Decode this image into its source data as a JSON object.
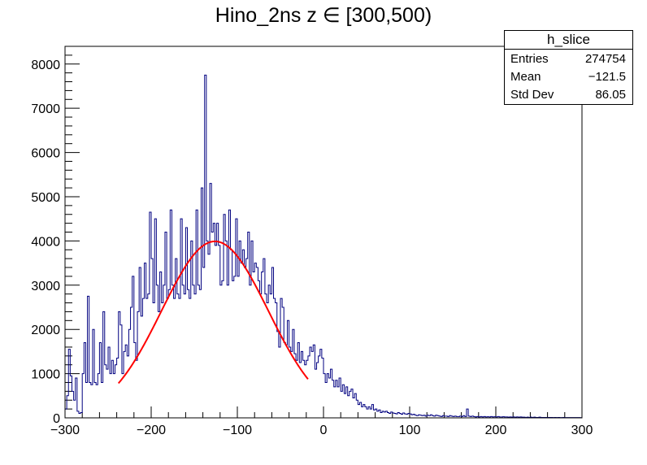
{
  "title": "Hino_2ns z  ∈ [300,500)",
  "stats": {
    "name": "h_slice",
    "entries_label": "Entries",
    "entries_value": "274754",
    "mean_label": "Mean",
    "mean_value": "−121.5",
    "std_label": "Std Dev",
    "std_value": "86.05"
  },
  "colors": {
    "histogram": "#000080",
    "fit": "#ff0000"
  },
  "chart_data": {
    "type": "line",
    "style": "step-histogram",
    "title": "Hino_2ns z  ∈ [300,500)",
    "xlabel": "",
    "ylabel": "",
    "xlim": [
      -300,
      300
    ],
    "ylim": [
      0,
      8400
    ],
    "grid": false,
    "x_ticks": [
      -300,
      -200,
      -100,
      0,
      100,
      200,
      300
    ],
    "x_tick_labels": [
      "−300",
      "−200",
      "−100",
      "0",
      "100",
      "200",
      "300"
    ],
    "y_ticks": [
      0,
      1000,
      2000,
      3000,
      4000,
      5000,
      6000,
      7000,
      8000
    ],
    "y_tick_labels": [
      "0",
      "1000",
      "2000",
      "3000",
      "4000",
      "5000",
      "6000",
      "7000",
      "8000"
    ],
    "series": [
      {
        "kind": "histogram",
        "bin_edges_from": -300,
        "bin_width": 2,
        "points": [
          [
            -300,
            200
          ],
          [
            -298,
            500
          ],
          [
            -296,
            1550
          ],
          [
            -294,
            950
          ],
          [
            -292,
            600
          ],
          [
            -290,
            400
          ],
          [
            -288,
            900
          ],
          [
            -286,
            150
          ],
          [
            -284,
            100
          ],
          [
            -282,
            120
          ],
          [
            -280,
            1000
          ],
          [
            -278,
            1700
          ],
          [
            -276,
            800
          ],
          [
            -274,
            2750
          ],
          [
            -272,
            800
          ],
          [
            -270,
            750
          ],
          [
            -268,
            2000
          ],
          [
            -266,
            800
          ],
          [
            -264,
            750
          ],
          [
            -262,
            1000
          ],
          [
            -260,
            1700
          ],
          [
            -258,
            800
          ],
          [
            -256,
            2400
          ],
          [
            -254,
            1200
          ],
          [
            -252,
            1100
          ],
          [
            -250,
            1600
          ],
          [
            -248,
            1000
          ],
          [
            -246,
            1300
          ],
          [
            -244,
            1000
          ],
          [
            -242,
            1200
          ],
          [
            -240,
            1350
          ],
          [
            -238,
            2400
          ],
          [
            -236,
            2100
          ],
          [
            -234,
            1000
          ],
          [
            -232,
            1500
          ],
          [
            -230,
            1650
          ],
          [
            -228,
            1400
          ],
          [
            -226,
            2000
          ],
          [
            -224,
            2500
          ],
          [
            -222,
            3200
          ],
          [
            -220,
            1700
          ],
          [
            -218,
            1300
          ],
          [
            -216,
            2400
          ],
          [
            -214,
            3400
          ],
          [
            -212,
            2300
          ],
          [
            -210,
            2700
          ],
          [
            -208,
            3500
          ],
          [
            -206,
            2700
          ],
          [
            -204,
            2800
          ],
          [
            -202,
            4650
          ],
          [
            -200,
            3600
          ],
          [
            -198,
            2600
          ],
          [
            -196,
            4500
          ],
          [
            -194,
            3000
          ],
          [
            -192,
            2400
          ],
          [
            -190,
            3300
          ],
          [
            -188,
            2600
          ],
          [
            -186,
            3000
          ],
          [
            -184,
            4200
          ],
          [
            -182,
            2700
          ],
          [
            -180,
            2900
          ],
          [
            -178,
            4700
          ],
          [
            -176,
            3000
          ],
          [
            -174,
            2700
          ],
          [
            -172,
            3600
          ],
          [
            -170,
            2800
          ],
          [
            -168,
            2700
          ],
          [
            -166,
            4500
          ],
          [
            -164,
            3000
          ],
          [
            -162,
            2800
          ],
          [
            -160,
            4300
          ],
          [
            -158,
            2900
          ],
          [
            -156,
            2700
          ],
          [
            -154,
            4000
          ],
          [
            -152,
            3000
          ],
          [
            -150,
            2800
          ],
          [
            -148,
            4700
          ],
          [
            -146,
            3000
          ],
          [
            -144,
            2900
          ],
          [
            -142,
            5200
          ],
          [
            -140,
            3400
          ],
          [
            -138,
            7750
          ],
          [
            -136,
            4000
          ],
          [
            -134,
            3700
          ],
          [
            -132,
            5300
          ],
          [
            -130,
            4200
          ],
          [
            -128,
            4400
          ],
          [
            -126,
            3900
          ],
          [
            -124,
            4400
          ],
          [
            -122,
            3900
          ],
          [
            -120,
            3000
          ],
          [
            -118,
            3100
          ],
          [
            -116,
            4600
          ],
          [
            -114,
            4000
          ],
          [
            -112,
            3000
          ],
          [
            -110,
            4700
          ],
          [
            -108,
            3800
          ],
          [
            -106,
            3100
          ],
          [
            -104,
            3200
          ],
          [
            -102,
            4500
          ],
          [
            -100,
            3200
          ],
          [
            -98,
            4000
          ],
          [
            -96,
            3500
          ],
          [
            -94,
            3800
          ],
          [
            -92,
            3400
          ],
          [
            -90,
            3600
          ],
          [
            -88,
            4200
          ],
          [
            -86,
            3000
          ],
          [
            -84,
            4000
          ],
          [
            -82,
            3300
          ],
          [
            -80,
            3500
          ],
          [
            -78,
            3400
          ],
          [
            -76,
            3100
          ],
          [
            -74,
            2800
          ],
          [
            -72,
            3300
          ],
          [
            -70,
            3600
          ],
          [
            -68,
            2800
          ],
          [
            -66,
            2600
          ],
          [
            -64,
            3000
          ],
          [
            -62,
            2800
          ],
          [
            -60,
            3400
          ],
          [
            -58,
            2700
          ],
          [
            -56,
            2600
          ],
          [
            -54,
            1950
          ],
          [
            -52,
            1600
          ],
          [
            -50,
            2700
          ],
          [
            -48,
            2500
          ],
          [
            -46,
            1700
          ],
          [
            -44,
            1650
          ],
          [
            -42,
            2200
          ],
          [
            -40,
            1600
          ],
          [
            -38,
            1500
          ],
          [
            -36,
            2000
          ],
          [
            -34,
            1450
          ],
          [
            -32,
            1300
          ],
          [
            -30,
            1700
          ],
          [
            -28,
            1250
          ],
          [
            -26,
            1500
          ],
          [
            -24,
            1300
          ],
          [
            -22,
            1200
          ],
          [
            -20,
            1300
          ],
          [
            -18,
            1400
          ],
          [
            -16,
            1600
          ],
          [
            -14,
            1500
          ],
          [
            -12,
            1650
          ],
          [
            -10,
            1100
          ],
          [
            -8,
            1250
          ],
          [
            -6,
            1400
          ],
          [
            -4,
            1550
          ],
          [
            -2,
            1350
          ],
          [
            0,
            1000
          ],
          [
            2,
            800
          ],
          [
            4,
            1000
          ],
          [
            6,
            900
          ],
          [
            8,
            1100
          ],
          [
            10,
            850
          ],
          [
            12,
            700
          ],
          [
            14,
            850
          ],
          [
            16,
            700
          ],
          [
            18,
            900
          ],
          [
            20,
            600
          ],
          [
            22,
            750
          ],
          [
            24,
            550
          ],
          [
            26,
            700
          ],
          [
            28,
            500
          ],
          [
            30,
            600
          ],
          [
            32,
            650
          ],
          [
            34,
            450
          ],
          [
            36,
            550
          ],
          [
            38,
            400
          ],
          [
            40,
            300
          ],
          [
            42,
            350
          ],
          [
            44,
            250
          ],
          [
            46,
            300
          ],
          [
            48,
            250
          ],
          [
            50,
            200
          ],
          [
            52,
            250
          ],
          [
            54,
            200
          ],
          [
            56,
            300
          ],
          [
            58,
            180
          ],
          [
            60,
            200
          ],
          [
            62,
            150
          ],
          [
            64,
            180
          ],
          [
            66,
            120
          ],
          [
            68,
            150
          ],
          [
            70,
            130
          ],
          [
            72,
            150
          ],
          [
            74,
            120
          ],
          [
            76,
            100
          ],
          [
            78,
            130
          ],
          [
            80,
            110
          ],
          [
            82,
            100
          ],
          [
            84,
            90
          ],
          [
            86,
            120
          ],
          [
            88,
            100
          ],
          [
            90,
            80
          ],
          [
            92,
            110
          ],
          [
            94,
            90
          ],
          [
            96,
            80
          ],
          [
            98,
            100
          ],
          [
            100,
            90
          ],
          [
            102,
            70
          ],
          [
            104,
            80
          ],
          [
            106,
            60
          ],
          [
            108,
            50
          ],
          [
            110,
            70
          ],
          [
            112,
            60
          ],
          [
            114,
            50
          ],
          [
            116,
            60
          ],
          [
            118,
            40
          ],
          [
            120,
            60
          ],
          [
            122,
            50
          ],
          [
            124,
            70
          ],
          [
            126,
            50
          ],
          [
            128,
            40
          ],
          [
            130,
            60
          ],
          [
            132,
            50
          ],
          [
            134,
            40
          ],
          [
            136,
            30
          ],
          [
            138,
            50
          ],
          [
            140,
            40
          ],
          [
            142,
            40
          ],
          [
            144,
            30
          ],
          [
            146,
            50
          ],
          [
            148,
            40
          ],
          [
            150,
            30
          ],
          [
            152,
            40
          ],
          [
            154,
            30
          ],
          [
            156,
            30
          ],
          [
            158,
            40
          ],
          [
            160,
            30
          ],
          [
            162,
            50
          ],
          [
            164,
            30
          ],
          [
            166,
            200
          ],
          [
            168,
            40
          ],
          [
            170,
            30
          ],
          [
            172,
            40
          ],
          [
            174,
            30
          ],
          [
            176,
            20
          ],
          [
            178,
            30
          ],
          [
            180,
            20
          ],
          [
            182,
            30
          ],
          [
            184,
            20
          ],
          [
            186,
            30
          ],
          [
            188,
            20
          ],
          [
            190,
            25
          ],
          [
            192,
            20
          ],
          [
            194,
            30
          ],
          [
            196,
            20
          ],
          [
            198,
            25
          ],
          [
            200,
            20
          ],
          [
            202,
            30
          ],
          [
            204,
            20
          ],
          [
            206,
            20
          ],
          [
            208,
            25
          ],
          [
            210,
            20
          ],
          [
            212,
            20
          ],
          [
            214,
            15
          ],
          [
            216,
            20
          ],
          [
            218,
            15
          ],
          [
            220,
            20
          ],
          [
            222,
            15
          ],
          [
            224,
            20
          ],
          [
            226,
            15
          ],
          [
            228,
            20
          ],
          [
            230,
            15
          ],
          [
            232,
            15
          ],
          [
            234,
            10
          ],
          [
            236,
            15
          ],
          [
            238,
            10
          ],
          [
            240,
            15
          ],
          [
            242,
            10
          ],
          [
            244,
            15
          ],
          [
            246,
            10
          ],
          [
            248,
            10
          ],
          [
            250,
            15
          ],
          [
            252,
            10
          ],
          [
            254,
            10
          ],
          [
            256,
            10
          ],
          [
            258,
            10
          ],
          [
            260,
            10
          ],
          [
            262,
            10
          ],
          [
            264,
            10
          ],
          [
            266,
            8
          ],
          [
            268,
            10
          ],
          [
            270,
            8
          ],
          [
            272,
            10
          ],
          [
            274,
            8
          ],
          [
            276,
            8
          ],
          [
            278,
            10
          ],
          [
            280,
            8
          ],
          [
            282,
            8
          ],
          [
            284,
            6
          ],
          [
            286,
            8
          ],
          [
            288,
            6
          ],
          [
            290,
            8
          ],
          [
            292,
            6
          ],
          [
            294,
            6
          ],
          [
            296,
            6
          ],
          [
            298,
            5
          ]
        ]
      },
      {
        "kind": "gaussian-fit",
        "amplitude": 3990,
        "mean": -126,
        "sigma": 62,
        "x_range": [
          -238,
          -18
        ]
      }
    ]
  }
}
